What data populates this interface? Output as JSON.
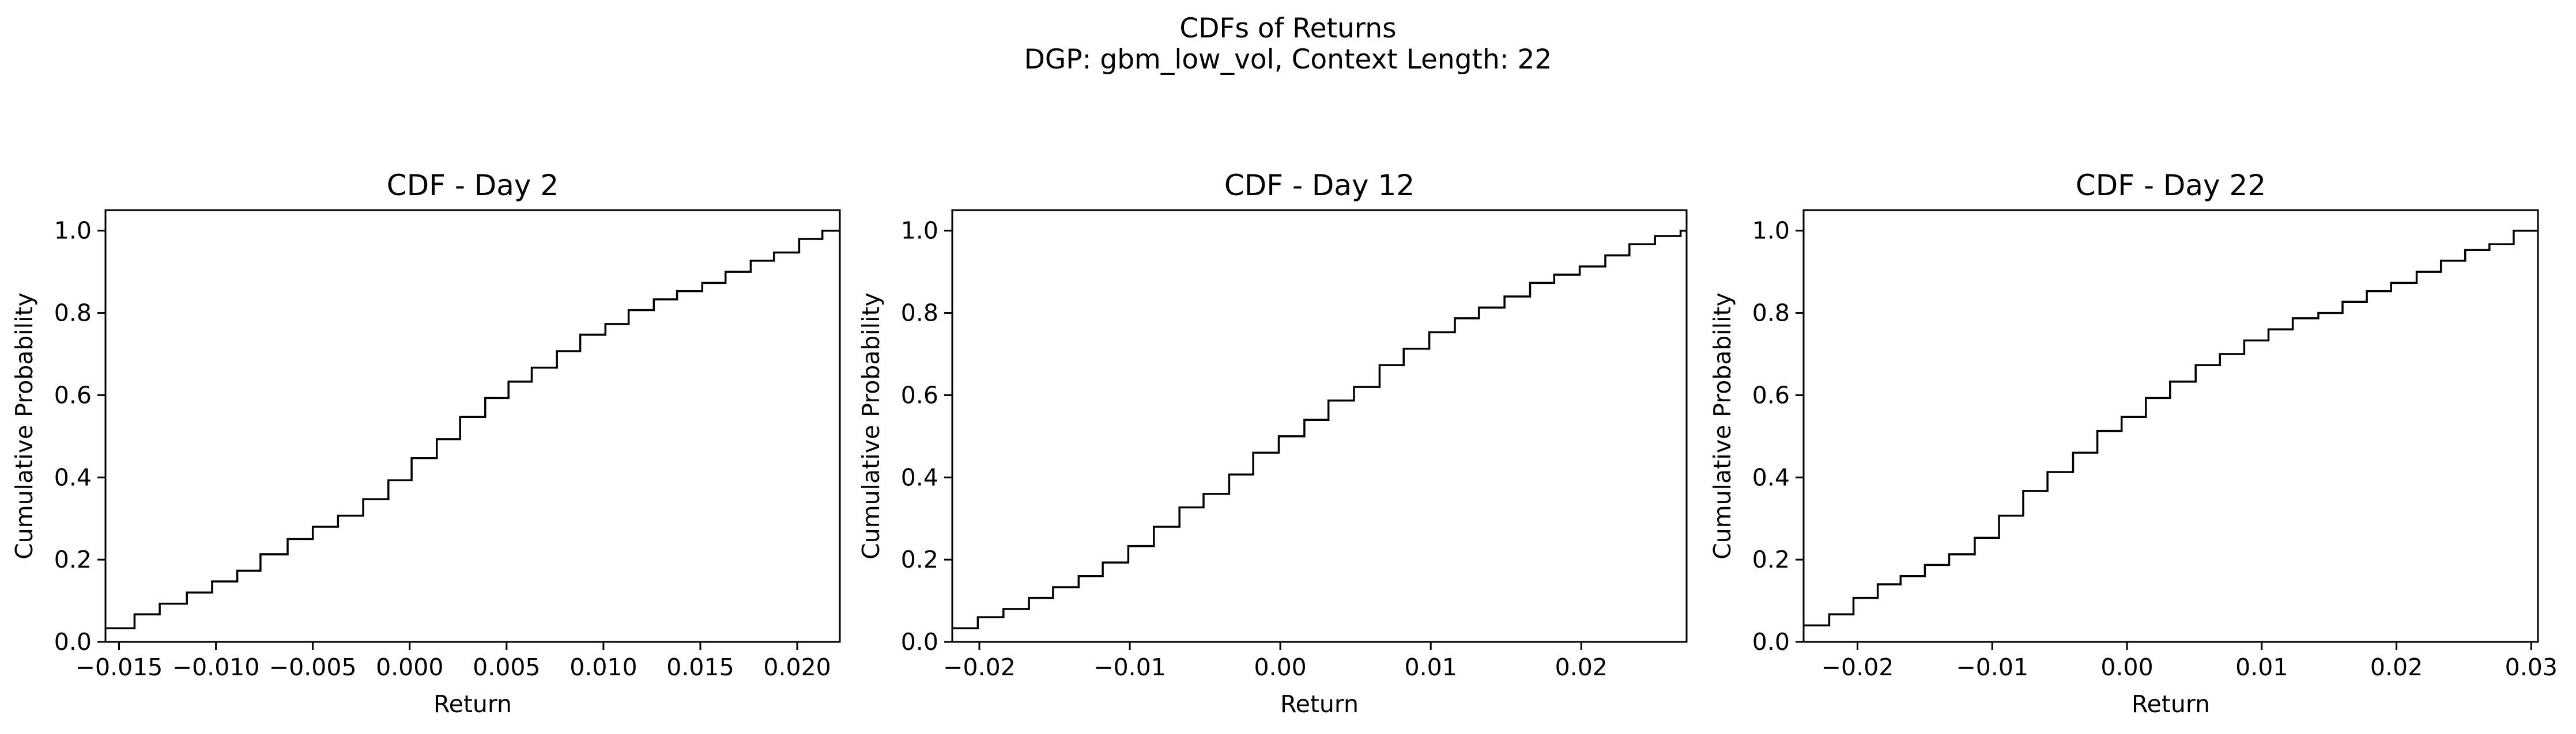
{
  "figure": {
    "title_line1": "CDFs of Returns",
    "title_line2": "DGP: gbm_low_vol, Context Length: 22"
  },
  "colors": {
    "line": "#000000",
    "axes": "#000000",
    "background": "#ffffff"
  },
  "chart_data": [
    {
      "type": "line",
      "subtype": "step",
      "title": "CDF - Day 2",
      "xlabel": "Return",
      "ylabel": "Cumulative Probability",
      "xlim": [
        -0.0157,
        0.0222
      ],
      "ylim": [
        0,
        1.05
      ],
      "grid": false,
      "xticks": [
        -0.015,
        -0.01,
        -0.005,
        0.0,
        0.005,
        0.01,
        0.015,
        0.02
      ],
      "xtick_labels": [
        "−0.015",
        "−0.010",
        "−0.005",
        "0.000",
        "0.005",
        "0.010",
        "0.015",
        "0.020"
      ],
      "yticks": [
        0.0,
        0.2,
        0.4,
        0.6,
        0.8,
        1.0
      ],
      "ytick_labels": [
        "0.0",
        "0.2",
        "0.4",
        "0.6",
        "0.8",
        "1.0"
      ],
      "series": [
        {
          "x": [
            -0.0157,
            -0.0142,
            -0.0129,
            -0.0115,
            -0.0102,
            -0.0089,
            -0.0077,
            -0.0063,
            -0.005,
            -0.0037,
            -0.0024,
            -0.0011,
            0.0001,
            0.0014,
            0.0026,
            0.0039,
            0.0051,
            0.0063,
            0.0076,
            0.0088,
            0.0101,
            0.0113,
            0.0126,
            0.0138,
            0.0151,
            0.0163,
            0.0176,
            0.0188,
            0.0201,
            0.0213
          ],
          "y": [
            0.033,
            0.067,
            0.093,
            0.12,
            0.147,
            0.173,
            0.213,
            0.25,
            0.28,
            0.307,
            0.347,
            0.393,
            0.447,
            0.493,
            0.547,
            0.593,
            0.633,
            0.667,
            0.707,
            0.747,
            0.773,
            0.807,
            0.833,
            0.853,
            0.873,
            0.9,
            0.927,
            0.947,
            0.98,
            1.0
          ]
        }
      ]
    },
    {
      "type": "line",
      "subtype": "step",
      "title": "CDF - Day 12",
      "xlabel": "Return",
      "ylabel": "Cumulative Probability",
      "xlim": [
        -0.0218,
        0.027
      ],
      "ylim": [
        0,
        1.05
      ],
      "grid": false,
      "xticks": [
        -0.02,
        -0.01,
        0.0,
        0.01,
        0.02
      ],
      "xtick_labels": [
        "−0.02",
        "−0.01",
        "0.00",
        "0.01",
        "0.02"
      ],
      "yticks": [
        0.0,
        0.2,
        0.4,
        0.6,
        0.8,
        1.0
      ],
      "ytick_labels": [
        "0.0",
        "0.2",
        "0.4",
        "0.6",
        "0.8",
        "1.0"
      ],
      "series": [
        {
          "x": [
            -0.0218,
            -0.0201,
            -0.0184,
            -0.0167,
            -0.0151,
            -0.0134,
            -0.0118,
            -0.0101,
            -0.0084,
            -0.0067,
            -0.0051,
            -0.0034,
            -0.0018,
            -0.0001,
            0.0016,
            0.0032,
            0.0049,
            0.0066,
            0.0082,
            0.0099,
            0.0116,
            0.0132,
            0.0149,
            0.0166,
            0.0182,
            0.0199,
            0.0216,
            0.0232,
            0.0249,
            0.0266
          ],
          "y": [
            0.033,
            0.06,
            0.08,
            0.107,
            0.133,
            0.16,
            0.193,
            0.233,
            0.28,
            0.327,
            0.36,
            0.407,
            0.46,
            0.5,
            0.54,
            0.587,
            0.62,
            0.673,
            0.713,
            0.753,
            0.787,
            0.813,
            0.84,
            0.873,
            0.893,
            0.913,
            0.94,
            0.967,
            0.987,
            1.0
          ]
        }
      ]
    },
    {
      "type": "line",
      "subtype": "step",
      "title": "CDF - Day 22",
      "xlabel": "Return",
      "ylabel": "Cumulative Probability",
      "xlim": [
        -0.024,
        0.0305
      ],
      "ylim": [
        0,
        1.05
      ],
      "grid": false,
      "xticks": [
        -0.02,
        -0.01,
        0.0,
        0.01,
        0.02,
        0.03
      ],
      "xtick_labels": [
        "−0.02",
        "−0.01",
        "0.00",
        "0.01",
        "0.02",
        "0.03"
      ],
      "yticks": [
        0.0,
        0.2,
        0.4,
        0.6,
        0.8,
        1.0
      ],
      "ytick_labels": [
        "0.0",
        "0.2",
        "0.4",
        "0.6",
        "0.8",
        "1.0"
      ],
      "series": [
        {
          "x": [
            -0.024,
            -0.0221,
            -0.0203,
            -0.0185,
            -0.0168,
            -0.015,
            -0.0132,
            -0.0113,
            -0.0095,
            -0.0077,
            -0.0059,
            -0.004,
            -0.0022,
            -0.0004,
            0.0014,
            0.0032,
            0.0051,
            0.0069,
            0.0087,
            0.0105,
            0.0123,
            0.0142,
            0.016,
            0.0178,
            0.0196,
            0.0215,
            0.0233,
            0.0251,
            0.0269,
            0.0287
          ],
          "y": [
            0.04,
            0.067,
            0.107,
            0.14,
            0.16,
            0.187,
            0.213,
            0.253,
            0.307,
            0.367,
            0.413,
            0.46,
            0.513,
            0.547,
            0.593,
            0.633,
            0.673,
            0.7,
            0.733,
            0.76,
            0.787,
            0.8,
            0.827,
            0.853,
            0.873,
            0.9,
            0.927,
            0.953,
            0.967,
            1.0
          ]
        }
      ]
    }
  ]
}
